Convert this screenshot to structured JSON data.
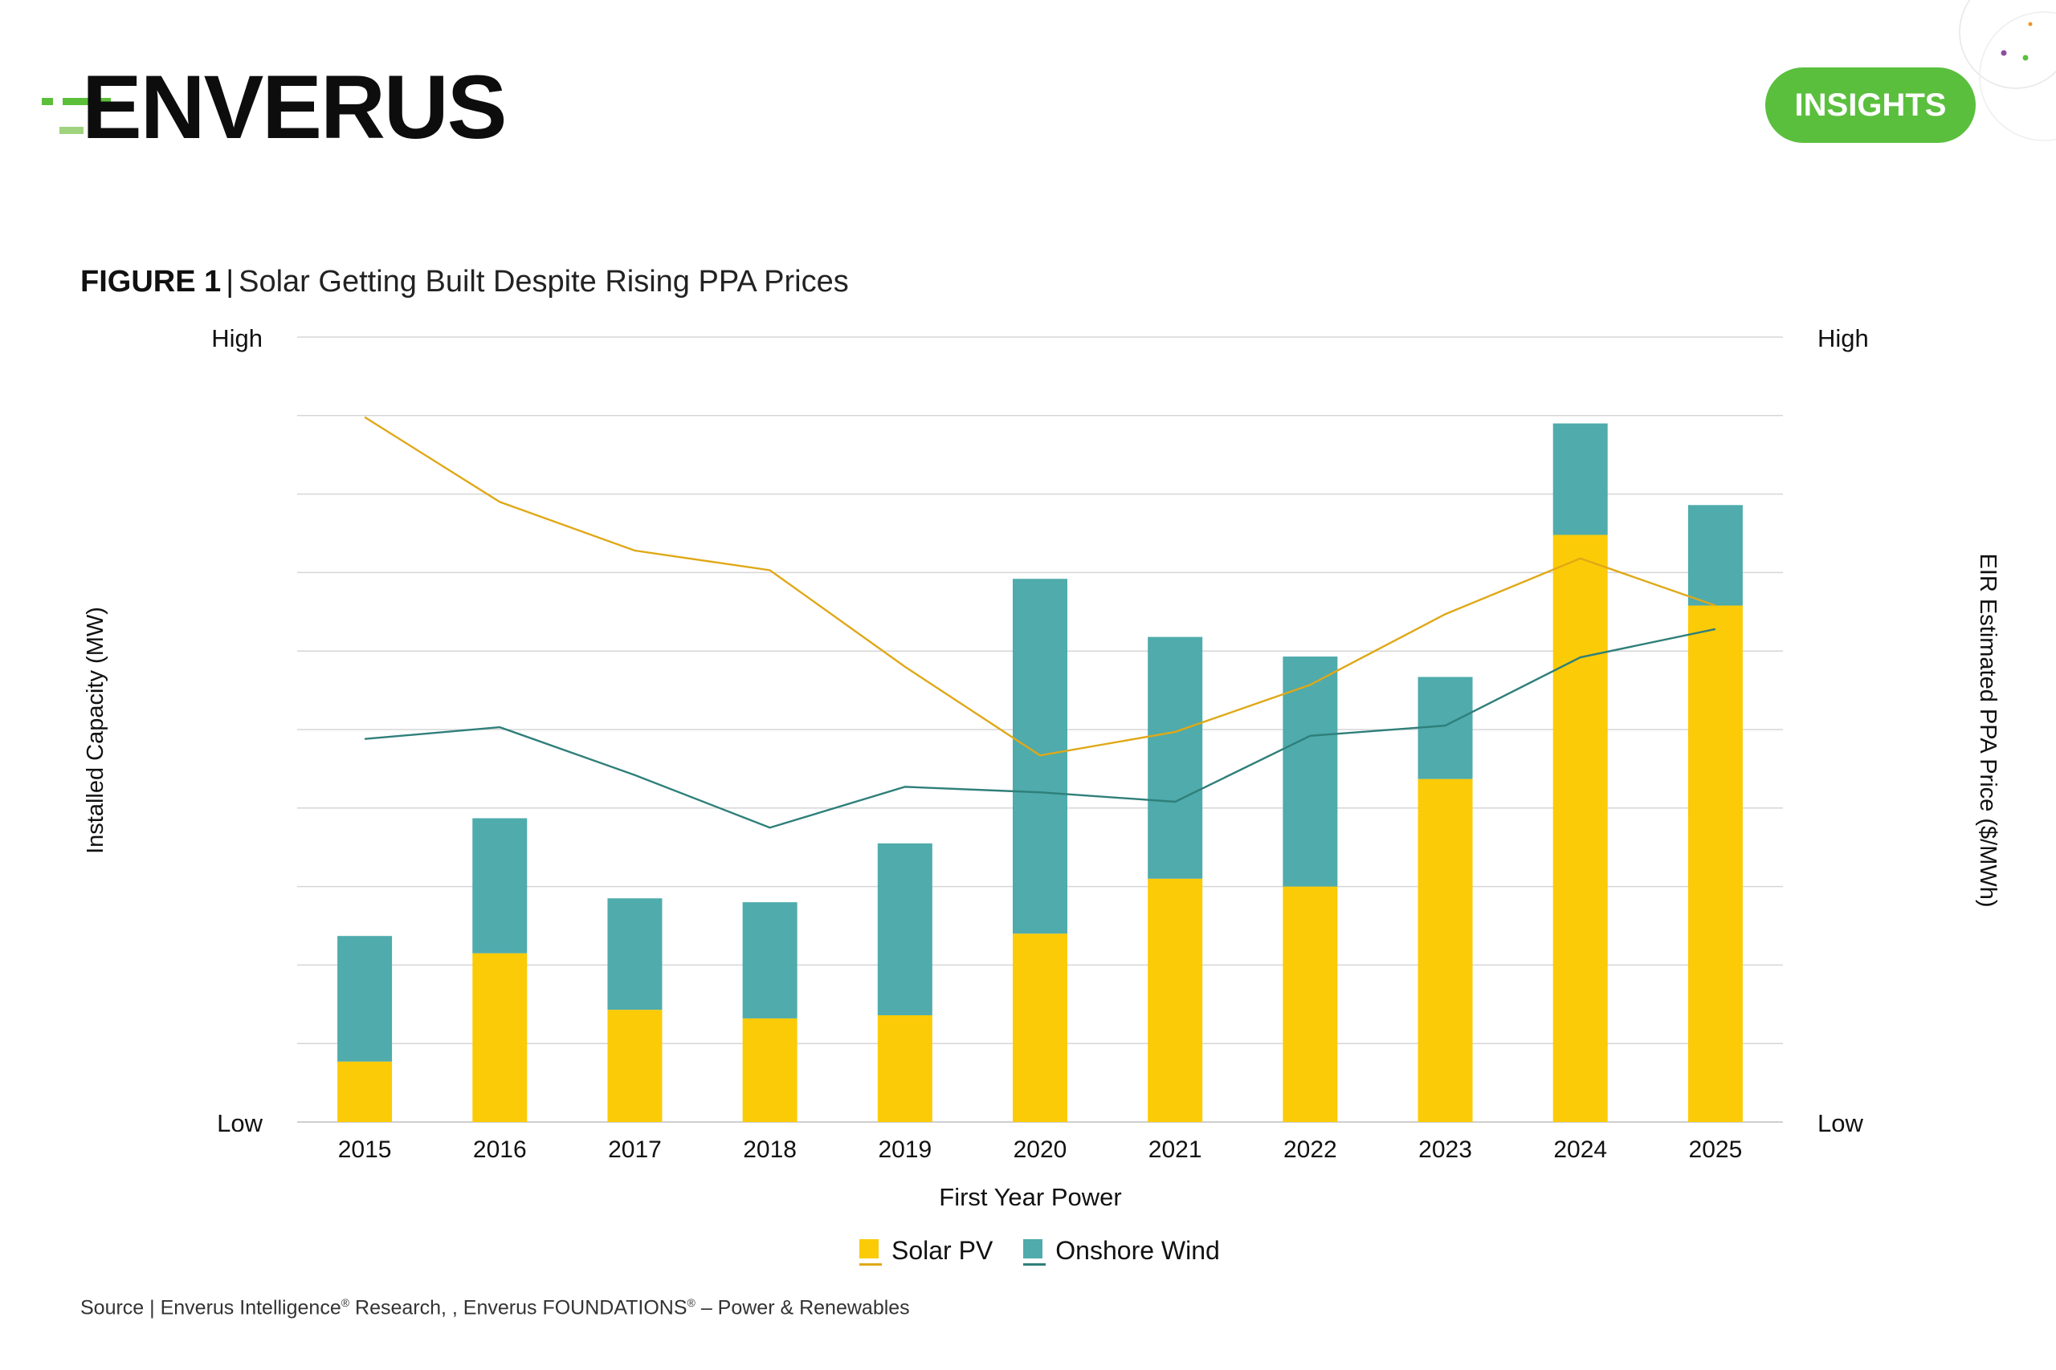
{
  "brand": {
    "logo_text": "ENVERUS",
    "badge": "INSIGHTS",
    "colors": {
      "brand_green": "#5bbf3e",
      "logo_dark": "#0d0d0d"
    }
  },
  "figure": {
    "label": "FIGURE 1",
    "separator": "|",
    "title": "Solar Getting Built Despite Rising PPA Prices"
  },
  "source": {
    "prefix": "Source | Enverus Intelligence",
    "mid": " Research, , Enverus FOUNDATIONS",
    "suffix": " – Power & Renewables",
    "reg": "®"
  },
  "chart_data": {
    "type": "bar",
    "stacked": true,
    "categories": [
      "2015",
      "2016",
      "2017",
      "2018",
      "2019",
      "2020",
      "2021",
      "2022",
      "2023",
      "2024",
      "2025"
    ],
    "xlabel": "First Year Power",
    "ylabel": "Installed Capacity (MW)",
    "y2label": "EIR Estimated PPA Price ($/MWh)",
    "ylim": [
      0,
      100
    ],
    "y_tick_labels": {
      "low": "Low",
      "high": "High"
    },
    "y2_tick_labels": {
      "low": "Low",
      "high": "High"
    },
    "gridlines": 10,
    "grid": true,
    "legend_position": "bottom",
    "series": [
      {
        "name": "Solar PV",
        "kind": "bar",
        "color": "#fbcb07",
        "values": [
          7.7,
          21.5,
          14.3,
          13.2,
          13.6,
          24.0,
          31.0,
          30.0,
          43.7,
          74.8,
          65.8
        ]
      },
      {
        "name": "Onshore Wind",
        "kind": "bar",
        "color": "#4fabac",
        "values": [
          16.0,
          17.2,
          14.2,
          14.8,
          21.9,
          45.2,
          30.8,
          29.3,
          13.0,
          14.2,
          12.8
        ]
      }
    ],
    "lines": [
      {
        "name": "Solar PV price",
        "kind": "line",
        "color": "#e0a817",
        "values": [
          89.8,
          79.0,
          72.8,
          70.3,
          58.0,
          46.7,
          49.7,
          55.7,
          64.7,
          71.8,
          65.8
        ]
      },
      {
        "name": "Onshore Wind price",
        "kind": "line",
        "color": "#2f7f7a",
        "values": [
          48.8,
          50.3,
          44.2,
          37.5,
          42.7,
          42.0,
          40.8,
          49.2,
          50.5,
          59.2,
          62.8
        ]
      }
    ]
  }
}
